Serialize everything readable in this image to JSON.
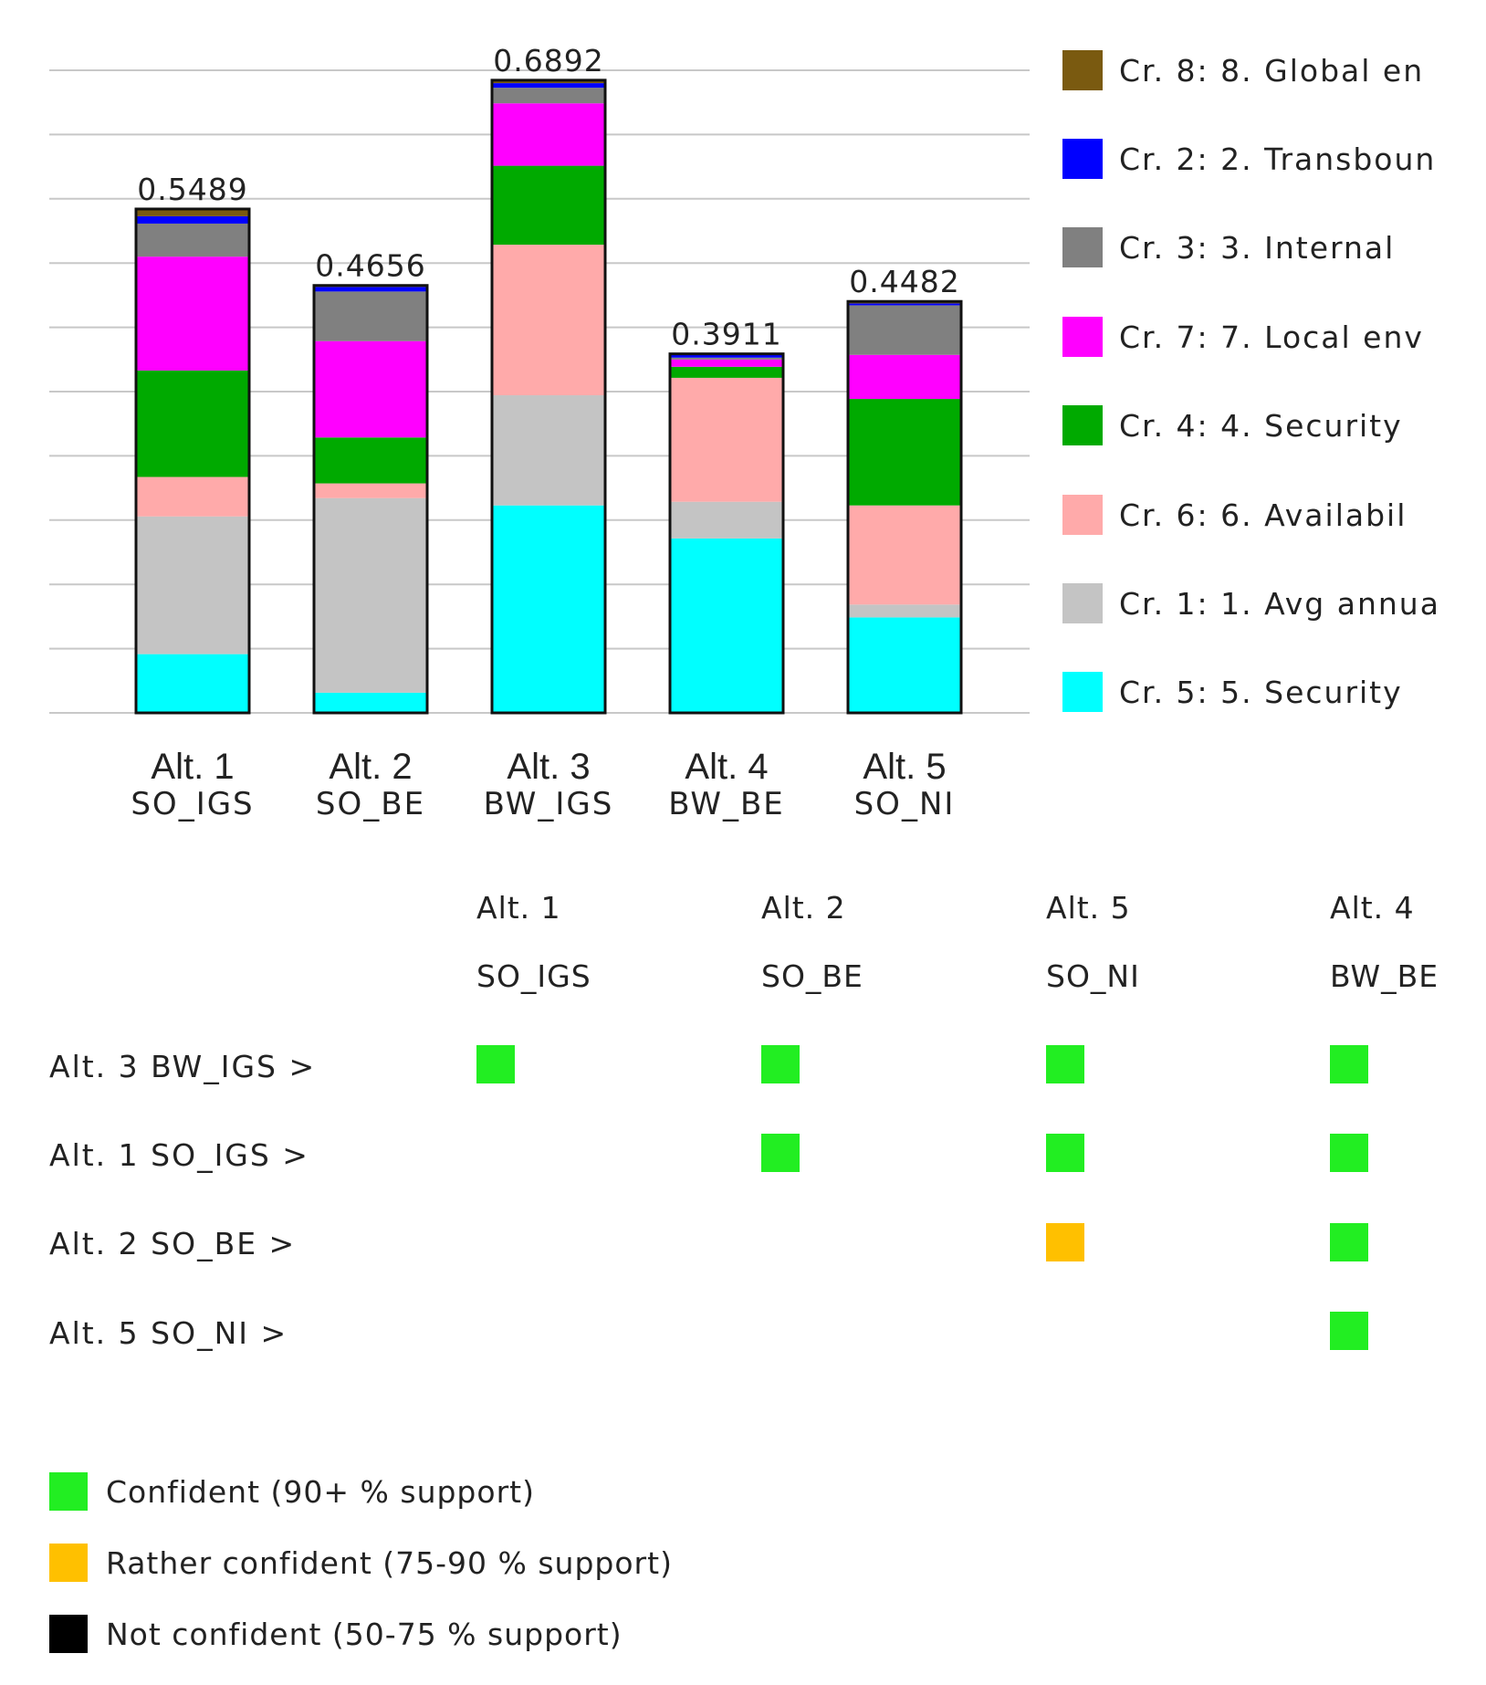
{
  "chart_data": {
    "type": "bar",
    "stacked": true,
    "title": "",
    "xlabel": "",
    "ylabel": "",
    "ylim": [
      0,
      0.7
    ],
    "grid": true,
    "legend_position": "right",
    "categories": [
      "Alt. 1",
      "Alt. 2",
      "Alt. 3",
      "Alt. 4",
      "Alt. 5"
    ],
    "category_sublabels": [
      "SO_IGS",
      "SO_BE",
      "BW_IGS",
      "BW_BE",
      "SO_NI"
    ],
    "totals": [
      0.5489,
      0.4656,
      0.6892,
      0.3911,
      0.4482
    ],
    "total_labels": [
      "0.5489",
      "0.4656",
      "0.6892",
      "0.3911",
      "0.4482"
    ],
    "series": [
      {
        "name": "Cr. 5: 5. Security",
        "color": "#00FFFF",
        "values": [
          0.064,
          0.022,
          0.226,
          0.19,
          0.104
        ]
      },
      {
        "name": "Cr. 1: 1. Avg annua",
        "color": "#C4C4C4",
        "values": [
          0.15,
          0.212,
          0.12,
          0.04,
          0.014
        ]
      },
      {
        "name": "Cr. 6: 6. Availabil",
        "color": "#FFAAAA",
        "values": [
          0.043,
          0.016,
          0.164,
          0.135,
          0.108
        ]
      },
      {
        "name": "Cr. 4: 4. Security",
        "color": "#00AA00",
        "values": [
          0.116,
          0.05,
          0.086,
          0.012,
          0.116
        ]
      },
      {
        "name": "Cr. 7: 7. Local env",
        "color": "#FF00FF",
        "values": [
          0.124,
          0.105,
          0.068,
          0.008,
          0.048
        ]
      },
      {
        "name": "Cr. 3: 3. Internal",
        "color": "#808080",
        "values": [
          0.036,
          0.054,
          0.017,
          0.002,
          0.054
        ]
      },
      {
        "name": "Cr. 2: 2. Transboun",
        "color": "#0000FF",
        "values": [
          0.008,
          0.005,
          0.005,
          0.004,
          0.002
        ]
      },
      {
        "name": "Cr. 8: 8. Global en",
        "color": "#7A5A10",
        "values": [
          0.0079,
          0.0016,
          0.0032,
          0.0001,
          0.0022
        ]
      }
    ]
  },
  "legend_items": [
    {
      "label": "Cr. 8: 8. Global en",
      "color": "#7A5A10"
    },
    {
      "label": "Cr. 2: 2. Transboun",
      "color": "#0000FF"
    },
    {
      "label": "Cr. 3: 3. Internal",
      "color": "#808080"
    },
    {
      "label": "Cr. 7: 7. Local env",
      "color": "#FF00FF"
    },
    {
      "label": "Cr. 4: 4. Security",
      "color": "#00AA00"
    },
    {
      "label": "Cr. 6: 6. Availabil",
      "color": "#FFAAAA"
    },
    {
      "label": "Cr. 1: 1. Avg annua",
      "color": "#C4C4C4"
    },
    {
      "label": "Cr. 5: 5. Security",
      "color": "#00FFFF"
    }
  ],
  "dominance": {
    "columns": [
      {
        "alt": "Alt. 1",
        "name": "SO_IGS"
      },
      {
        "alt": "Alt. 2",
        "name": "SO_BE"
      },
      {
        "alt": "Alt. 5",
        "name": "SO_NI"
      },
      {
        "alt": "Alt. 4",
        "name": "BW_BE"
      }
    ],
    "rows": [
      {
        "label": "Alt. 3 BW_IGS >",
        "cells": [
          "confident",
          "confident",
          "confident",
          "confident"
        ]
      },
      {
        "label": "Alt. 1 SO_IGS >",
        "cells": [
          null,
          "confident",
          "confident",
          "confident"
        ]
      },
      {
        "label": "Alt. 2 SO_BE >",
        "cells": [
          null,
          null,
          "rather_confident",
          "confident"
        ]
      },
      {
        "label": "Alt. 5 SO_NI >",
        "cells": [
          null,
          null,
          null,
          "confident"
        ]
      }
    ],
    "levels": {
      "confident": {
        "label": "Confident (90+ % support)",
        "color": "#22EE22"
      },
      "rather_confident": {
        "label": "Rather confident (75-90 % support)",
        "color": "#FFC000"
      },
      "not_confident": {
        "label": "Not confident (50-75 % support)",
        "color": "#000000"
      }
    },
    "legend_order": [
      "confident",
      "rather_confident",
      "not_confident"
    ]
  }
}
